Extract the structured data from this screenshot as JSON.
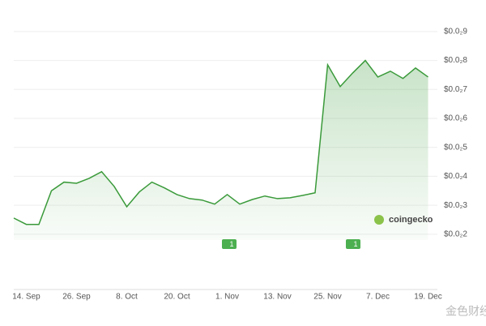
{
  "chart_data": {
    "type": "line",
    "categories": [
      null,
      "14. Sep",
      null,
      null,
      null,
      "26. Sep",
      null,
      null,
      null,
      "8. Oct",
      null,
      null,
      null,
      "20. Oct",
      null,
      null,
      null,
      "1. Nov",
      null,
      null,
      null,
      "13. Nov",
      null,
      null,
      null,
      "25. Nov",
      null,
      null,
      null,
      "7. Dec",
      null,
      null,
      null,
      "19. Dec"
    ],
    "series": [
      {
        "color": "#3a9a3a",
        "values": [
          0.00256,
          0.00234,
          0.00234,
          0.0035,
          0.0038,
          0.00376,
          0.00393,
          0.00416,
          0.00365,
          0.00295,
          0.00346,
          0.0038,
          0.0036,
          0.00337,
          0.00323,
          0.00318,
          0.00304,
          0.00337,
          0.00304,
          0.0032,
          0.00332,
          0.00323,
          0.00326,
          0.00334,
          0.00343,
          0.00785,
          0.0071,
          0.00757,
          0.008,
          0.00743,
          0.00763,
          0.00738,
          0.00774,
          0.00743
        ]
      }
    ],
    "ylim": [
      0.0018,
      0.0095
    ],
    "yticks": [
      {
        "value": 0.002,
        "label": "$0.0₂2"
      },
      {
        "value": 0.003,
        "label": "$0.0₂3"
      },
      {
        "value": 0.004,
        "label": "$0.0₂4"
      },
      {
        "value": 0.005,
        "label": "$0.0₂5"
      },
      {
        "value": 0.006,
        "label": "$0.0₂6"
      },
      {
        "value": 0.007,
        "label": "$0.0₂7"
      },
      {
        "value": 0.008,
        "label": "$0.0₂8"
      },
      {
        "value": 0.009,
        "label": "$0.0₂9"
      }
    ],
    "grid": true,
    "annotations": [
      "1",
      "1"
    ],
    "brand": "coingecko",
    "watermark": "金色财经"
  }
}
